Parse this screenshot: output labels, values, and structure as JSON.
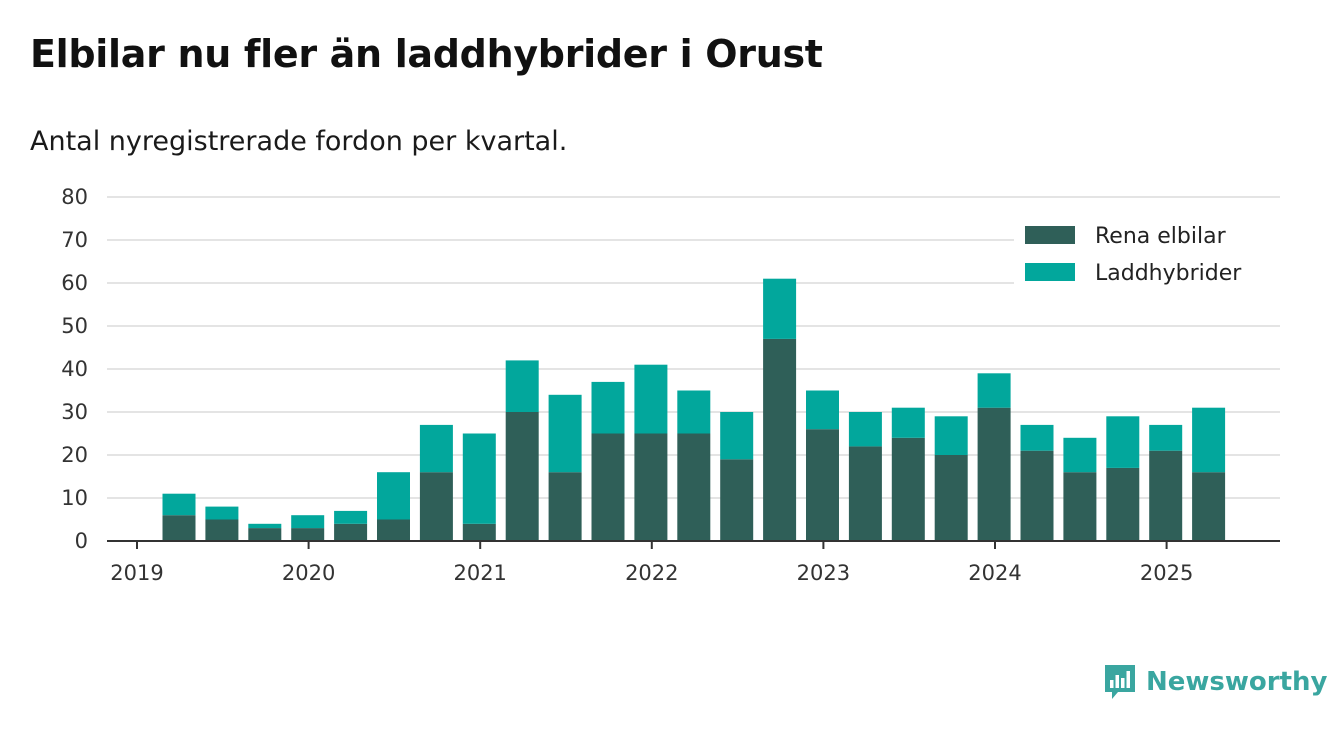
{
  "title": "Elbilar nu fler än laddhybrider i Orust",
  "subtitle": "Antal nyregistrerade fordon per kvartal.",
  "brand": "Newsworthy",
  "colors": {
    "series1": "#2f5f58",
    "series2": "#02a79c",
    "grid": "#dcdcdc",
    "axis": "#333333",
    "brand": "#3aa6a0"
  },
  "chart_data": {
    "type": "bar",
    "stacked": true,
    "categories": [
      "2019 Q2",
      "2019 Q3",
      "2019 Q4",
      "2020 Q1",
      "2020 Q2",
      "2020 Q3",
      "2020 Q4",
      "2021 Q1",
      "2021 Q2",
      "2021 Q3",
      "2021 Q4",
      "2022 Q1",
      "2022 Q2",
      "2022 Q3",
      "2022 Q4",
      "2023 Q1",
      "2023 Q2",
      "2023 Q3",
      "2023 Q4",
      "2024 Q1",
      "2024 Q2",
      "2024 Q3",
      "2024 Q4",
      "2025 Q1",
      "2025 Q2"
    ],
    "series": [
      {
        "name": "Rena elbilar",
        "values": [
          6,
          5,
          3,
          3,
          4,
          5,
          16,
          4,
          30,
          16,
          25,
          25,
          25,
          19,
          47,
          26,
          22,
          24,
          20,
          31,
          21,
          16,
          17,
          21,
          16
        ]
      },
      {
        "name": "Laddhybrider",
        "values": [
          5,
          3,
          1,
          3,
          3,
          11,
          11,
          21,
          12,
          18,
          12,
          16,
          10,
          11,
          14,
          9,
          8,
          7,
          9,
          8,
          6,
          8,
          12,
          6,
          15
        ]
      }
    ],
    "x_tick_labels": [
      "2019",
      "2020",
      "2021",
      "2022",
      "2023",
      "2024",
      "2025"
    ],
    "y_ticks": [
      0,
      10,
      20,
      30,
      40,
      50,
      60,
      70,
      80
    ],
    "ylim": [
      0,
      80
    ],
    "grid": true,
    "legend_position": "top-right"
  }
}
